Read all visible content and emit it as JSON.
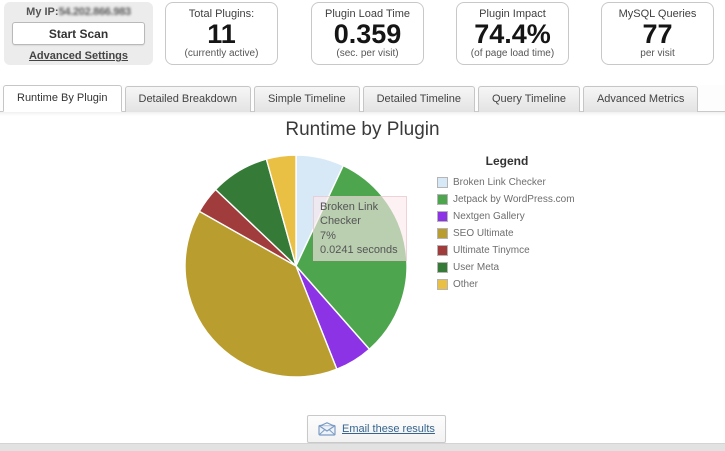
{
  "header": {
    "my_ip": {
      "label": "My IP:",
      "value_obscured": "54.202.866.983"
    },
    "start_scan_label": "Start Scan",
    "advanced_settings_label": "Advanced Settings",
    "stats": [
      {
        "label": "Total Plugins:",
        "value": "11",
        "sub": "(currently active)"
      },
      {
        "label": "Plugin Load Time",
        "value": "0.359",
        "sub": "(sec. per visit)"
      },
      {
        "label": "Plugin Impact",
        "value": "74.4%",
        "sub": "(of page load time)"
      },
      {
        "label": "MySQL Queries",
        "value": "77",
        "sub": "per visit"
      }
    ]
  },
  "tabs": [
    {
      "label": "Runtime By Plugin",
      "active": true
    },
    {
      "label": "Detailed Breakdown",
      "active": false
    },
    {
      "label": "Simple Timeline",
      "active": false
    },
    {
      "label": "Detailed Timeline",
      "active": false
    },
    {
      "label": "Query Timeline",
      "active": false
    },
    {
      "label": "Advanced Metrics",
      "active": false
    }
  ],
  "chart": {
    "title": "Runtime by Plugin",
    "legend_title": "Legend",
    "tooltip": {
      "plugin": "Broken Link Checker",
      "percent": "7%",
      "seconds": "0.0241 seconds"
    }
  },
  "footer": {
    "email_button_label": "Email these results"
  },
  "chart_data": {
    "type": "pie",
    "title": "Runtime by Plugin",
    "legend_position": "right",
    "rotation": "clockwise-from-top",
    "unit": "percent of plugin load time",
    "slices": [
      {
        "label": "Broken Link Checker",
        "percent": 7.0,
        "seconds": 0.0241,
        "color": "#d7e8f7"
      },
      {
        "label": "Jetpack by WordPress.com",
        "percent": 31.5,
        "color": "#4da64d"
      },
      {
        "label": "Nextgen Gallery",
        "percent": 5.5,
        "color": "#8c33e6"
      },
      {
        "label": "SEO Ultimate",
        "percent": 39.2,
        "color": "#b99d2f"
      },
      {
        "label": "Ultimate Tinymce",
        "percent": 3.9,
        "color": "#a03c3c"
      },
      {
        "label": "User Meta",
        "percent": 8.6,
        "color": "#357b37"
      },
      {
        "label": "Other",
        "percent": 4.3,
        "color": "#e9c043"
      }
    ]
  }
}
